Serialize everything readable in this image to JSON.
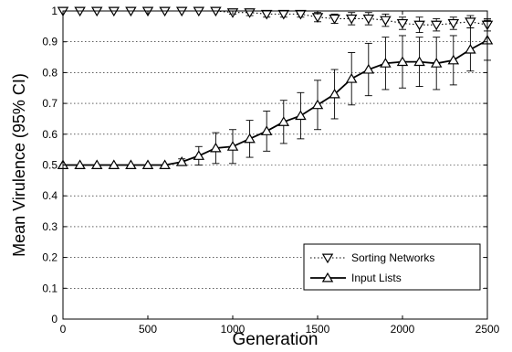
{
  "chart_data": {
    "type": "line",
    "title": "",
    "xlabel": "Generation",
    "ylabel": "Mean Virulence (95% CI)",
    "xlim": [
      0,
      2500
    ],
    "ylim": [
      0,
      1
    ],
    "xticks": [
      0,
      500,
      1000,
      1500,
      2000,
      2500
    ],
    "yticks": [
      0,
      0.1,
      0.2,
      0.3,
      0.4,
      0.5,
      0.6,
      0.7,
      0.8,
      0.9,
      1
    ],
    "xtick_labels": [
      "0",
      "500",
      "1000",
      "1500",
      "2000",
      "2500"
    ],
    "ytick_labels": [
      "0",
      "0.1",
      "0.2",
      "0.3",
      "0.4",
      "0.5",
      "0.6",
      "0.7",
      "0.8",
      "0.9",
      "1"
    ],
    "grid": "horizontal-dotted",
    "legend_position": "bottom-right",
    "x": [
      0,
      100,
      200,
      300,
      400,
      500,
      600,
      700,
      800,
      900,
      1000,
      1100,
      1200,
      1300,
      1400,
      1500,
      1600,
      1700,
      1800,
      1900,
      2000,
      2100,
      2200,
      2300,
      2400,
      2500
    ],
    "series": [
      {
        "name": "Sorting Networks",
        "marker": "triangle-down",
        "line_style": "dotted",
        "values": [
          1.0,
          1.0,
          1.0,
          1.0,
          1.0,
          1.0,
          1.0,
          1.0,
          1.0,
          1.0,
          0.995,
          0.995,
          0.99,
          0.99,
          0.99,
          0.98,
          0.975,
          0.975,
          0.975,
          0.97,
          0.96,
          0.955,
          0.955,
          0.96,
          0.965,
          0.955
        ],
        "ci": [
          0,
          0,
          0,
          0,
          0,
          0,
          0,
          0,
          0,
          0,
          0.005,
          0.01,
          0.01,
          0.01,
          0.01,
          0.015,
          0.015,
          0.02,
          0.02,
          0.02,
          0.02,
          0.025,
          0.02,
          0.02,
          0.02,
          0.02
        ]
      },
      {
        "name": "Input Lists",
        "marker": "triangle-up",
        "line_style": "solid",
        "values": [
          0.5,
          0.5,
          0.5,
          0.5,
          0.5,
          0.5,
          0.5,
          0.51,
          0.53,
          0.555,
          0.56,
          0.585,
          0.61,
          0.64,
          0.66,
          0.695,
          0.73,
          0.78,
          0.81,
          0.83,
          0.835,
          0.835,
          0.83,
          0.84,
          0.875,
          0.905
        ],
        "ci": [
          0,
          0,
          0,
          0,
          0,
          0,
          0,
          0.01,
          0.03,
          0.05,
          0.055,
          0.06,
          0.065,
          0.07,
          0.075,
          0.08,
          0.08,
          0.085,
          0.085,
          0.085,
          0.085,
          0.08,
          0.085,
          0.08,
          0.07,
          0.065
        ]
      }
    ]
  }
}
